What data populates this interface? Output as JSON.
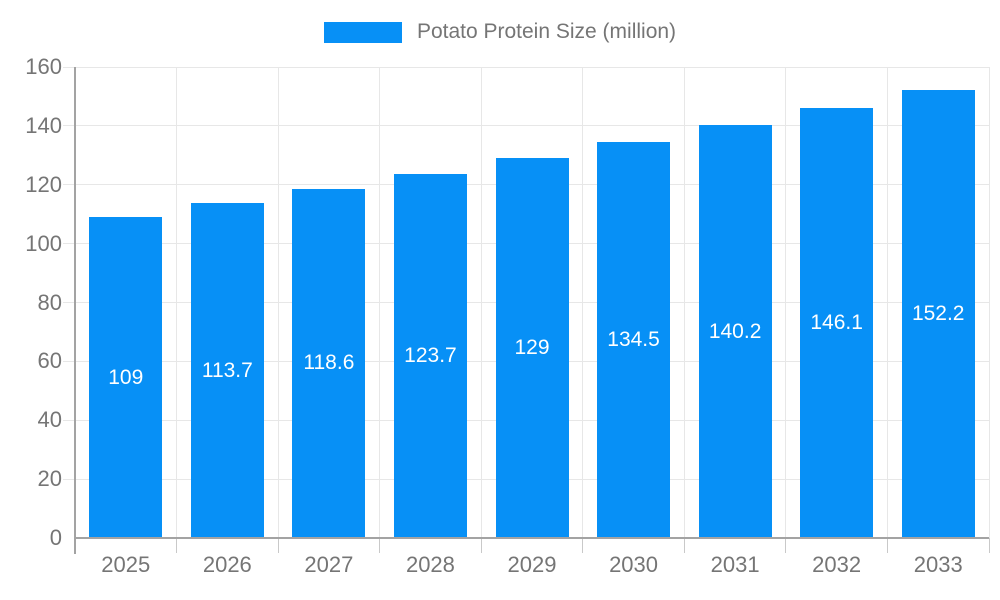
{
  "legend": {
    "label": "Potato Protein Size (million)"
  },
  "colors": {
    "bar": "#0790f6",
    "bar_label": "#ffffff",
    "axis_label": "#757575",
    "grid_line": "#e7e7e7",
    "axis_line": "#a3a3a3",
    "tick": "#c9c9c9",
    "background": "#ffffff"
  },
  "chart_data": {
    "type": "bar",
    "title": "Potato Protein Size (million)",
    "categories": [
      "2025",
      "2026",
      "2027",
      "2028",
      "2029",
      "2030",
      "2031",
      "2032",
      "2033"
    ],
    "values": [
      109,
      113.7,
      118.6,
      123.7,
      129,
      134.5,
      140.2,
      146.1,
      152.2
    ],
    "bar_labels": [
      "109",
      "113.7",
      "118.6",
      "123.7",
      "129",
      "134.5",
      "140.2",
      "146.1",
      "152.2"
    ],
    "xlabel": "",
    "ylabel": "",
    "ylim": [
      0,
      160
    ],
    "ytick_interval": 20,
    "ytick_labels": [
      "0",
      "20",
      "40",
      "60",
      "80",
      "100",
      "120",
      "140",
      "160"
    ],
    "grid": true,
    "legend_position": "top",
    "bar_label_position": "center"
  }
}
